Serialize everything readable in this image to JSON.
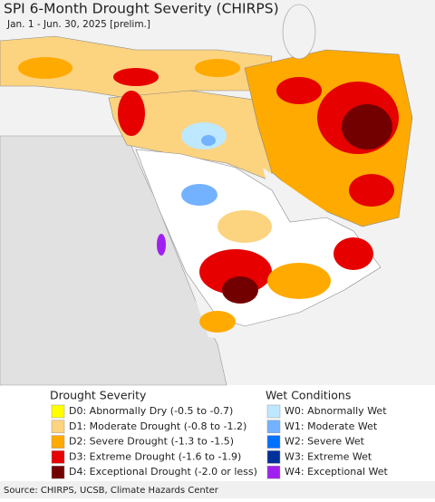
{
  "header": {
    "title": "SPI 6-Month Drought Severity (CHIRPS)",
    "subtitle": "Jan. 1 - Jun. 30, 2025 [prelim.]"
  },
  "legend": {
    "drought": {
      "title": "Drought Severity",
      "items": [
        {
          "label": "D0: Abnormally Dry (-0.5 to -0.7)",
          "color": "#ffff00"
        },
        {
          "label": "D1: Moderate Drought (-0.8 to -1.2)",
          "color": "#fcd37f"
        },
        {
          "label": "D2: Severe Drought (-1.3 to -1.5)",
          "color": "#ffaa00"
        },
        {
          "label": "D3: Extreme Drought (-1.6 to -1.9)",
          "color": "#e60000"
        },
        {
          "label": "D4: Exceptional Drought (-2.0 or less)",
          "color": "#730000"
        }
      ]
    },
    "wet": {
      "title": "Wet Conditions",
      "items": [
        {
          "label": "W0: Abnormally Wet",
          "color": "#bee8ff"
        },
        {
          "label": "W1: Moderate Wet",
          "color": "#73b2ff"
        },
        {
          "label": "W2: Severe Wet",
          "color": "#0070ff"
        },
        {
          "label": "W3: Extreme Wet",
          "color": "#00309a"
        },
        {
          "label": "W4: Exceptional Wet",
          "color": "#a020f0"
        }
      ]
    }
  },
  "footer": {
    "source": "Source: CHIRPS, UCSB, Climate Hazards Center"
  }
}
